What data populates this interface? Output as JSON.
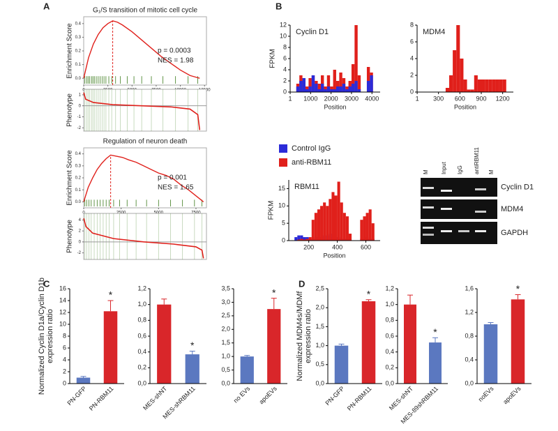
{
  "panel_labels": [
    "A",
    "B",
    "C",
    "D"
  ],
  "gel": {
    "lane_labels": [
      "M",
      "Input",
      "IgG",
      "antiRBM11",
      "M"
    ],
    "band_labels": [
      "Cyclin D1",
      "MDM4",
      "GAPDH"
    ]
  },
  "chart_data": [
    {
      "type": "gsea",
      "title": "G₁/S transition of mitotic cell cycle",
      "ylabel": "Enrichment Score",
      "color": "#e0201b",
      "x": [
        0,
        500,
        1000,
        1500,
        2000,
        2500,
        3000,
        3500,
        4000,
        5000,
        6000,
        7000,
        8000,
        9000,
        10000,
        11000,
        11500,
        12000
      ],
      "values": [
        0,
        0.15,
        0.25,
        0.32,
        0.37,
        0.4,
        0.42,
        0.41,
        0.39,
        0.34,
        0.28,
        0.22,
        0.16,
        0.11,
        0.06,
        0.02,
        0.01,
        0
      ],
      "peak": 3000,
      "hit_color": "#3a7a1a",
      "hits": [
        120,
        300,
        450,
        600,
        800,
        950,
        1100,
        1300,
        1500,
        1700,
        1900,
        2100,
        2300,
        2600,
        2900,
        3300,
        3800,
        4500,
        5200,
        6000,
        7000,
        8200,
        9500,
        10800,
        11800
      ],
      "xlim": [
        0,
        12700
      ],
      "xticks": [
        0,
        2500,
        5000,
        7500,
        10000,
        12500
      ],
      "ylim": [
        -0.05,
        0.45
      ],
      "yticks": [
        {
          "value": 0,
          "label": "0.0"
        },
        {
          "value": 0.1,
          "label": "0.1"
        },
        {
          "value": 0.2,
          "label": "0.2"
        },
        {
          "value": 0.3,
          "label": "0.3"
        },
        {
          "value": 0.4,
          "label": "0.4"
        }
      ],
      "annotations": [
        "p = 0.0003",
        "NES = 1.98"
      ]
    },
    {
      "type": "phenotype",
      "ylabel": "Phenotype",
      "color": "#e0201b",
      "x": [
        0,
        200,
        1000,
        3000,
        6000,
        9000,
        11000,
        11800,
        12000
      ],
      "values": [
        1.2,
        0.6,
        0.3,
        0.1,
        0,
        -0.1,
        -0.3,
        -0.8,
        -2.2
      ],
      "xlim": [
        0,
        12700
      ],
      "ylim": [
        -2.3,
        1.5
      ],
      "yticks": [
        1,
        0,
        -1,
        -2
      ]
    },
    {
      "type": "gsea",
      "title": "Regulation of neuron death",
      "ylabel": "Enrichment Score",
      "color": "#e0201b",
      "x": [
        0,
        300,
        600,
        900,
        1200,
        1500,
        1800,
        2200,
        2600,
        3000,
        3500,
        4000,
        4500,
        5000,
        5500,
        6000,
        6500,
        7000,
        7500,
        7800,
        8000
      ],
      "values": [
        0,
        0.12,
        0.2,
        0.27,
        0.32,
        0.36,
        0.39,
        0.38,
        0.37,
        0.35,
        0.33,
        0.3,
        0.27,
        0.24,
        0.22,
        0.19,
        0.14,
        0.1,
        0.05,
        0.02,
        0
      ],
      "peak": 1800,
      "hit_color": "#3a7a1a",
      "hits": [
        80,
        200,
        350,
        500,
        700,
        900,
        1100,
        1300,
        1500,
        1700,
        2000,
        2400,
        2900,
        3500,
        4200,
        5000,
        5800,
        6600,
        7400,
        7900
      ],
      "xlim": [
        0,
        8200
      ],
      "xticks": [
        0,
        2500,
        5000,
        7500
      ],
      "ylim": [
        -0.05,
        0.45
      ],
      "yticks": [
        {
          "value": 0,
          "label": "0.0"
        },
        {
          "value": 0.1,
          "label": "0.1"
        },
        {
          "value": 0.2,
          "label": "0.2"
        },
        {
          "value": 0.3,
          "label": "0.3"
        },
        {
          "value": 0.4,
          "label": "0.4"
        }
      ],
      "annotations": [
        "p = 0.001",
        "NES = 1.65"
      ]
    },
    {
      "type": "phenotype",
      "ylabel": "Phenotype",
      "color": "#e0201b",
      "x": [
        0,
        150,
        600,
        2000,
        4000,
        6000,
        7500,
        7900,
        8000
      ],
      "values": [
        4.3,
        2.8,
        1.6,
        0.6,
        0,
        -0.4,
        -0.9,
        -1.5,
        -3.0
      ],
      "xlim": [
        0,
        8200
      ],
      "ylim": [
        -3.2,
        5.2
      ],
      "yticks": [
        4,
        2,
        0,
        -2
      ]
    },
    {
      "type": "histogram",
      "label": "Cyclin D1",
      "xlabel": "Position",
      "ylabel": "FPKM",
      "bins": [
        0,
        150,
        300,
        450,
        600,
        750,
        900,
        1050,
        1200,
        1350,
        1500,
        1650,
        1800,
        1950,
        2100,
        2250,
        2400,
        2550,
        2700,
        2850,
        3000,
        3150,
        3300,
        3450,
        3600,
        3750,
        3900,
        4050,
        4200
      ],
      "series": [
        {
          "name": "anti-RBM11",
          "color": "#e0201b",
          "values": [
            0,
            0,
            1.5,
            3,
            2,
            1,
            2.5,
            3,
            2,
            1.5,
            3,
            1,
            3,
            1,
            4,
            2,
            3.5,
            2.5,
            1,
            2,
            5,
            12,
            3,
            0,
            0,
            4.5,
            3.5,
            0
          ]
        },
        {
          "name": "Control IgG",
          "color": "#2b2bd8",
          "values": [
            0,
            0,
            1,
            2,
            2.5,
            0.5,
            1,
            3,
            1.5,
            0.5,
            1.5,
            0.5,
            1,
            0.5,
            0.5,
            1,
            1,
            1.5,
            0.5,
            1,
            1.5,
            2,
            0.5,
            0,
            0,
            2,
            3,
            0
          ]
        }
      ],
      "xlim": [
        0,
        4400
      ],
      "xticks": [
        1,
        1000,
        2000,
        3000,
        4000
      ],
      "ylim": [
        0,
        12
      ],
      "yticks": [
        0,
        2,
        4,
        6,
        8,
        10,
        12
      ]
    },
    {
      "type": "histogram",
      "label": "MDM4",
      "xlabel": "Position",
      "bins": [
        0,
        50,
        100,
        150,
        200,
        250,
        300,
        350,
        400,
        450,
        500,
        550,
        600,
        650,
        700,
        750,
        800,
        850,
        900,
        950,
        1000,
        1050,
        1100,
        1150,
        1200,
        1250,
        1300
      ],
      "series": [
        {
          "name": "anti-RBM11",
          "color": "#e0201b",
          "values": [
            0,
            0,
            0,
            0,
            0,
            0,
            0,
            0,
            0.5,
            2,
            5,
            8,
            4,
            1.5,
            0.3,
            0.3,
            2,
            1.5,
            1.5,
            1.5,
            1.5,
            1.5,
            1.5,
            1.5,
            1.5,
            0
          ]
        }
      ],
      "xlim": [
        0,
        1350
      ],
      "xticks": [
        1,
        300,
        600,
        900,
        1200
      ],
      "ylim": [
        0,
        8
      ],
      "yticks": [
        0,
        2,
        4,
        6,
        8
      ]
    },
    {
      "type": "histogram",
      "label": "RBM11",
      "xlabel": "Position",
      "ylabel": "FPKM",
      "legend": true,
      "bins": [
        100,
        120,
        140,
        160,
        180,
        200,
        220,
        240,
        260,
        280,
        300,
        320,
        340,
        360,
        380,
        400,
        420,
        440,
        460,
        480,
        500,
        520,
        540,
        560,
        580,
        600,
        620,
        640,
        660,
        680
      ],
      "series": [
        {
          "name": "Control IgG",
          "color": "#2b2bd8",
          "values": [
            1,
            1.5,
            1.5,
            1,
            1,
            0.5,
            0.5,
            1,
            1,
            1,
            1.5,
            1.5,
            2,
            1,
            1,
            1,
            0.5,
            0.5,
            0.5,
            0.5,
            0,
            0,
            0,
            0.5,
            1,
            1,
            0.5,
            0.5,
            0
          ]
        },
        {
          "name": "anti-RBM11",
          "color": "#e0201b",
          "values": [
            0,
            0.3,
            0.5,
            0.3,
            0.5,
            1,
            6,
            8,
            9,
            10,
            11,
            10,
            12,
            14,
            13,
            17,
            11,
            8,
            7,
            2,
            0,
            0,
            0,
            6,
            7,
            8,
            9,
            5,
            0
          ]
        }
      ],
      "xlim": [
        60,
        700
      ],
      "xticks": [
        200,
        400,
        600
      ],
      "ylim": [
        0,
        17.5
      ],
      "yticks": [
        0,
        5,
        10,
        15
      ]
    },
    {
      "type": "bar",
      "ylabel": [
        "Normalized Cyclin D1a/Cyclin D1b",
        "expression ratio"
      ],
      "categories": [
        "PN-GFP",
        "PN-RBM11"
      ],
      "values": [
        1,
        12.2
      ],
      "errors": [
        0.2,
        1.8
      ],
      "colors": [
        "#5b78c0",
        "#d9262a"
      ],
      "significance": [
        null,
        "*"
      ],
      "ylim": [
        0,
        16
      ],
      "yticks": [
        0,
        2,
        4,
        6,
        8,
        10,
        12,
        14,
        16
      ]
    },
    {
      "type": "bar",
      "categories": [
        "MES-shNT",
        "MES-shRBM11"
      ],
      "values": [
        1.0,
        0.37
      ],
      "errors": [
        0.07,
        0.04
      ],
      "colors": [
        "#d9262a",
        "#5b78c0"
      ],
      "significance": [
        null,
        "*"
      ],
      "ylim": [
        0,
        1.2
      ],
      "yticks": [
        {
          "value": 0,
          "label": "0,0"
        },
        {
          "value": 0.2,
          "label": "0,2"
        },
        {
          "value": 0.4,
          "label": "0,4"
        },
        {
          "value": 0.6,
          "label": "0,6"
        },
        {
          "value": 0.8,
          "label": "0,8"
        },
        {
          "value": 1.0,
          "label": "1,0"
        },
        {
          "value": 1.2,
          "label": "1,2"
        }
      ]
    },
    {
      "type": "bar",
      "categories": [
        "no EVs",
        "apoEVs"
      ],
      "values": [
        1.0,
        2.75
      ],
      "errors": [
        0.04,
        0.4
      ],
      "colors": [
        "#5b78c0",
        "#d9262a"
      ],
      "significance": [
        null,
        "*"
      ],
      "ylim": [
        0,
        3.5
      ],
      "yticks": [
        {
          "value": 0,
          "label": "0,0"
        },
        {
          "value": 0.5,
          "label": "0,5"
        },
        {
          "value": 1.0,
          "label": "1,0"
        },
        {
          "value": 1.5,
          "label": "1,5"
        },
        {
          "value": 2.0,
          "label": "2,0"
        },
        {
          "value": 2.5,
          "label": "2,5"
        },
        {
          "value": 3.0,
          "label": "3,0"
        },
        {
          "value": 3.5,
          "label": "3,5"
        }
      ]
    },
    {
      "type": "bar",
      "ylabel": [
        "Normalized MDM4s/MDMf",
        "expression ratio"
      ],
      "categories": [
        "PN-GFP",
        "PN-RBM11"
      ],
      "values": [
        1.0,
        2.17
      ],
      "errors": [
        0.04,
        0.04
      ],
      "colors": [
        "#5b78c0",
        "#d9262a"
      ],
      "significance": [
        null,
        "*"
      ],
      "ylim": [
        0,
        2.5
      ],
      "yticks": [
        {
          "value": 0,
          "label": "0,0"
        },
        {
          "value": 0.5,
          "label": "0,5"
        },
        {
          "value": 1.0,
          "label": "1,0"
        },
        {
          "value": 1.5,
          "label": "1,5"
        },
        {
          "value": 2.0,
          "label": "2,0"
        },
        {
          "value": 2.5,
          "label": "2,5"
        }
      ]
    },
    {
      "type": "bar",
      "categories": [
        "MES-shNT",
        "MES-89shRBM11"
      ],
      "values": [
        1.0,
        0.52
      ],
      "errors": [
        0.12,
        0.06
      ],
      "colors": [
        "#d9262a",
        "#5b78c0"
      ],
      "significance": [
        null,
        "*"
      ],
      "ylim": [
        0,
        1.2
      ],
      "yticks": [
        {
          "value": 0,
          "label": "0,0"
        },
        {
          "value": 0.2,
          "label": "0,2"
        },
        {
          "value": 0.4,
          "label": "0,4"
        },
        {
          "value": 0.6,
          "label": "0,6"
        },
        {
          "value": 0.8,
          "label": "0,8"
        },
        {
          "value": 1.0,
          "label": "1,0"
        },
        {
          "value": 1.2,
          "label": "1,2"
        }
      ]
    },
    {
      "type": "bar",
      "categories": [
        "noEVs",
        "apoEVs"
      ],
      "values": [
        1.0,
        1.42
      ],
      "errors": [
        0.03,
        0.08
      ],
      "colors": [
        "#5b78c0",
        "#d9262a"
      ],
      "significance": [
        null,
        "*"
      ],
      "ylim": [
        0,
        1.6
      ],
      "yticks": [
        {
          "value": 0,
          "label": "0,0"
        },
        {
          "value": 0.4,
          "label": "0,4"
        },
        {
          "value": 0.8,
          "label": "0,8"
        },
        {
          "value": 1.2,
          "label": "1,2"
        },
        {
          "value": 1.6,
          "label": "1,6"
        }
      ]
    }
  ]
}
